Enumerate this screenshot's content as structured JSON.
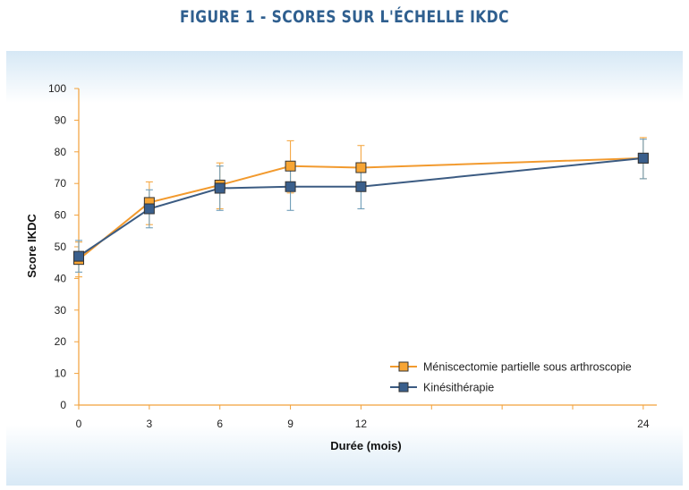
{
  "title": "FIGURE 1 - SCORES SUR L'ÉCHELLE IKDC",
  "chart_data": {
    "type": "line",
    "xlabel": "Durée (mois)",
    "ylabel": "Score IKDC",
    "x": [
      0,
      3,
      6,
      9,
      12,
      24
    ],
    "x_ticks": [
      0,
      3,
      6,
      9,
      12,
      24
    ],
    "y_ticks": [
      0,
      10,
      20,
      30,
      40,
      50,
      60,
      70,
      80,
      90,
      100
    ],
    "ylim": [
      0,
      100
    ],
    "xlim": [
      0,
      24.5
    ],
    "grid": false,
    "legend_position": "bottom-right",
    "series": [
      {
        "name": "Méniscectomie partielle sous arthroscopie",
        "color": "#f29a2e",
        "marker_color": "#f7a534",
        "x": [
          0,
          3,
          6,
          9,
          12,
          24
        ],
        "values": [
          46,
          64,
          69.5,
          75.5,
          75,
          78
        ],
        "err_low": [
          40.5,
          57,
          62,
          67,
          68,
          71.5
        ],
        "err_high": [
          51.5,
          70.5,
          76.5,
          83.5,
          82,
          84.5
        ]
      },
      {
        "name": "Kinésithérapie",
        "color": "#3b5b82",
        "marker_color": "#3a5f8c",
        "x": [
          0,
          3,
          6,
          9,
          12,
          24
        ],
        "values": [
          47,
          62,
          68.5,
          69,
          69,
          78
        ],
        "err_low": [
          42,
          56,
          61.5,
          61.5,
          62,
          71.5
        ],
        "err_high": [
          52,
          68,
          75.5,
          76.5,
          76,
          84
        ]
      }
    ]
  }
}
